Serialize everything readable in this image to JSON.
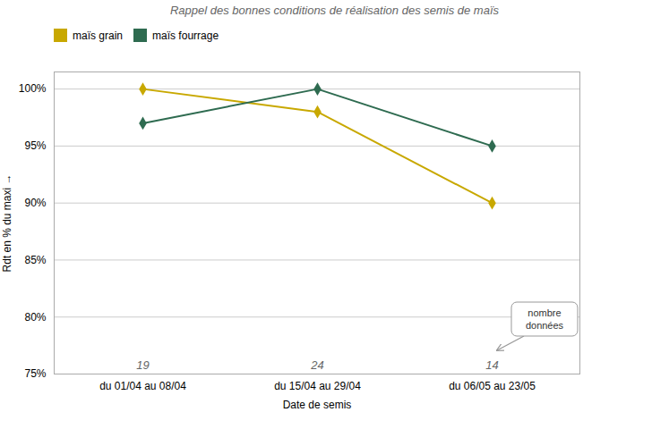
{
  "chart_data": {
    "type": "line",
    "title": "Rappel des bonnes conditions de réalisation des semis de maïs",
    "xlabel": "Date de semis",
    "ylabel": "Rdt en % du maxi",
    "categories": [
      "du 01/04 au 08/04",
      "du 15/04 au 29/04",
      "du 06/05 au 23/05"
    ],
    "series": [
      {
        "name": "maïs grain",
        "color": "#C8A800",
        "marker": "diamond",
        "values": [
          100,
          98,
          90
        ]
      },
      {
        "name": "maïs fourrage",
        "color": "#2E6B50",
        "marker": "diamond",
        "values": [
          97,
          100,
          95
        ]
      }
    ],
    "ylim": [
      75,
      101.5
    ],
    "yticks": [
      {
        "value": 75,
        "label": "75%"
      },
      {
        "value": 80,
        "label": "80%"
      },
      {
        "value": 85,
        "label": "85%"
      },
      {
        "value": 90,
        "label": "90%"
      },
      {
        "value": 95,
        "label": "95%"
      },
      {
        "value": 100,
        "label": "100%"
      }
    ],
    "grid": true,
    "legend": "top",
    "counts": [
      19,
      24,
      14
    ],
    "annotations": [
      "nombre\ndonnées"
    ]
  }
}
